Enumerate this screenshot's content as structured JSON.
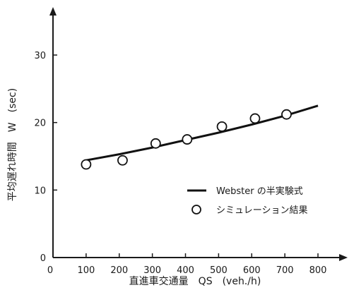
{
  "chart_data": {
    "type": "line",
    "title": "",
    "xlabel": "直進車交通量　QS　(veh./h)",
    "ylabel": "平均遅れ時間　W　(sec)",
    "xlim": [
      0,
      800
    ],
    "ylim": [
      0,
      35
    ],
    "x_ticks": [
      0,
      100,
      200,
      300,
      400,
      500,
      600,
      700,
      800
    ],
    "y_ticks": [
      0,
      10,
      20,
      30
    ],
    "grid": false,
    "legend": "bottom-right",
    "series": [
      {
        "name": "Webster の半実験式",
        "kind": "line",
        "x": [
          100,
          200,
          300,
          400,
          500,
          600,
          700,
          800
        ],
        "values": [
          14.4,
          15.3,
          16.3,
          17.4,
          18.5,
          19.7,
          21.0,
          22.5
        ]
      },
      {
        "name": "シミュレーション結果",
        "kind": "scatter",
        "x": [
          100,
          210,
          310,
          405,
          510,
          610,
          705
        ],
        "values": [
          13.8,
          14.4,
          16.9,
          17.5,
          19.4,
          20.6,
          21.2
        ]
      }
    ]
  }
}
